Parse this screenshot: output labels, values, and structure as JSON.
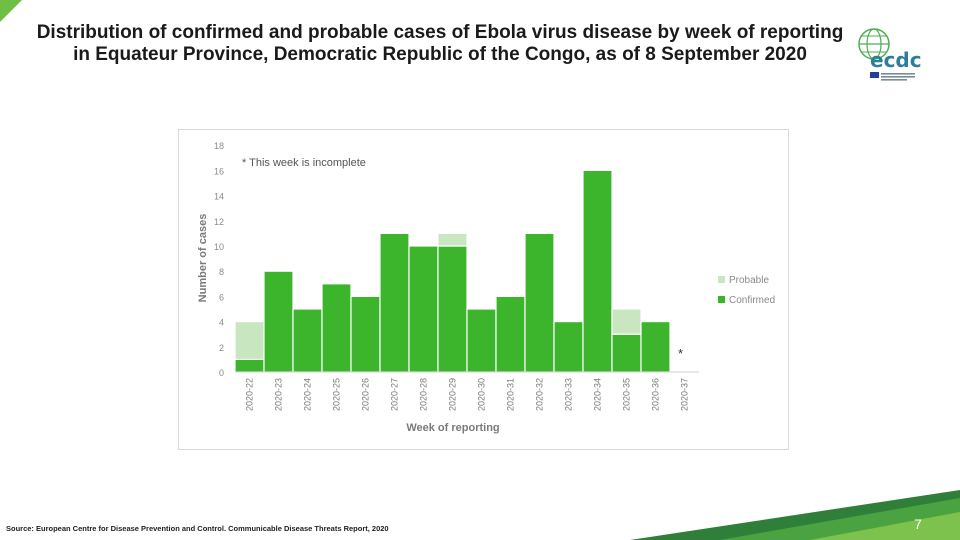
{
  "title": "Distribution of confirmed and probable cases of Ebola virus disease by week of reporting in Equateur Province, Democratic Republic of the Congo, as of 8 September 2020",
  "logo_text": "ecdc",
  "source": "Source: European Centre for Disease Prevention and Control. Communicable Disease Threats Report, 2020",
  "page_number": "7",
  "colors": {
    "confirmed": "#3cb52c",
    "probable": "#c8e6c0",
    "accent": "#6fbf44"
  },
  "chart_data": {
    "type": "bar",
    "stacked": true,
    "categories": [
      "2020-22",
      "2020-23",
      "2020-24",
      "2020-25",
      "2020-26",
      "2020-27",
      "2020-28",
      "2020-29",
      "2020-30",
      "2020-31",
      "2020-32",
      "2020-33",
      "2020-34",
      "2020-35",
      "2020-36",
      "2020-37"
    ],
    "series": [
      {
        "name": "Confirmed",
        "values": [
          1,
          8,
          5,
          7,
          6,
          11,
          10,
          10,
          5,
          6,
          11,
          4,
          16,
          3,
          4,
          0
        ]
      },
      {
        "name": "Probable",
        "values": [
          3,
          0,
          0,
          0,
          0,
          0,
          0,
          1,
          0,
          0,
          0,
          0,
          0,
          2,
          0,
          0
        ]
      }
    ],
    "y_ticks": [
      "0",
      "2",
      "4",
      "6",
      "8",
      "10",
      "12",
      "14",
      "16",
      "18"
    ],
    "ylim": [
      0,
      18
    ],
    "xlabel": "Week of reporting",
    "ylabel": "Number of cases",
    "annotation": "* This week is incomplete",
    "incomplete_marker": "*",
    "incomplete_index": 15,
    "legend_position": "right",
    "grid": false
  }
}
